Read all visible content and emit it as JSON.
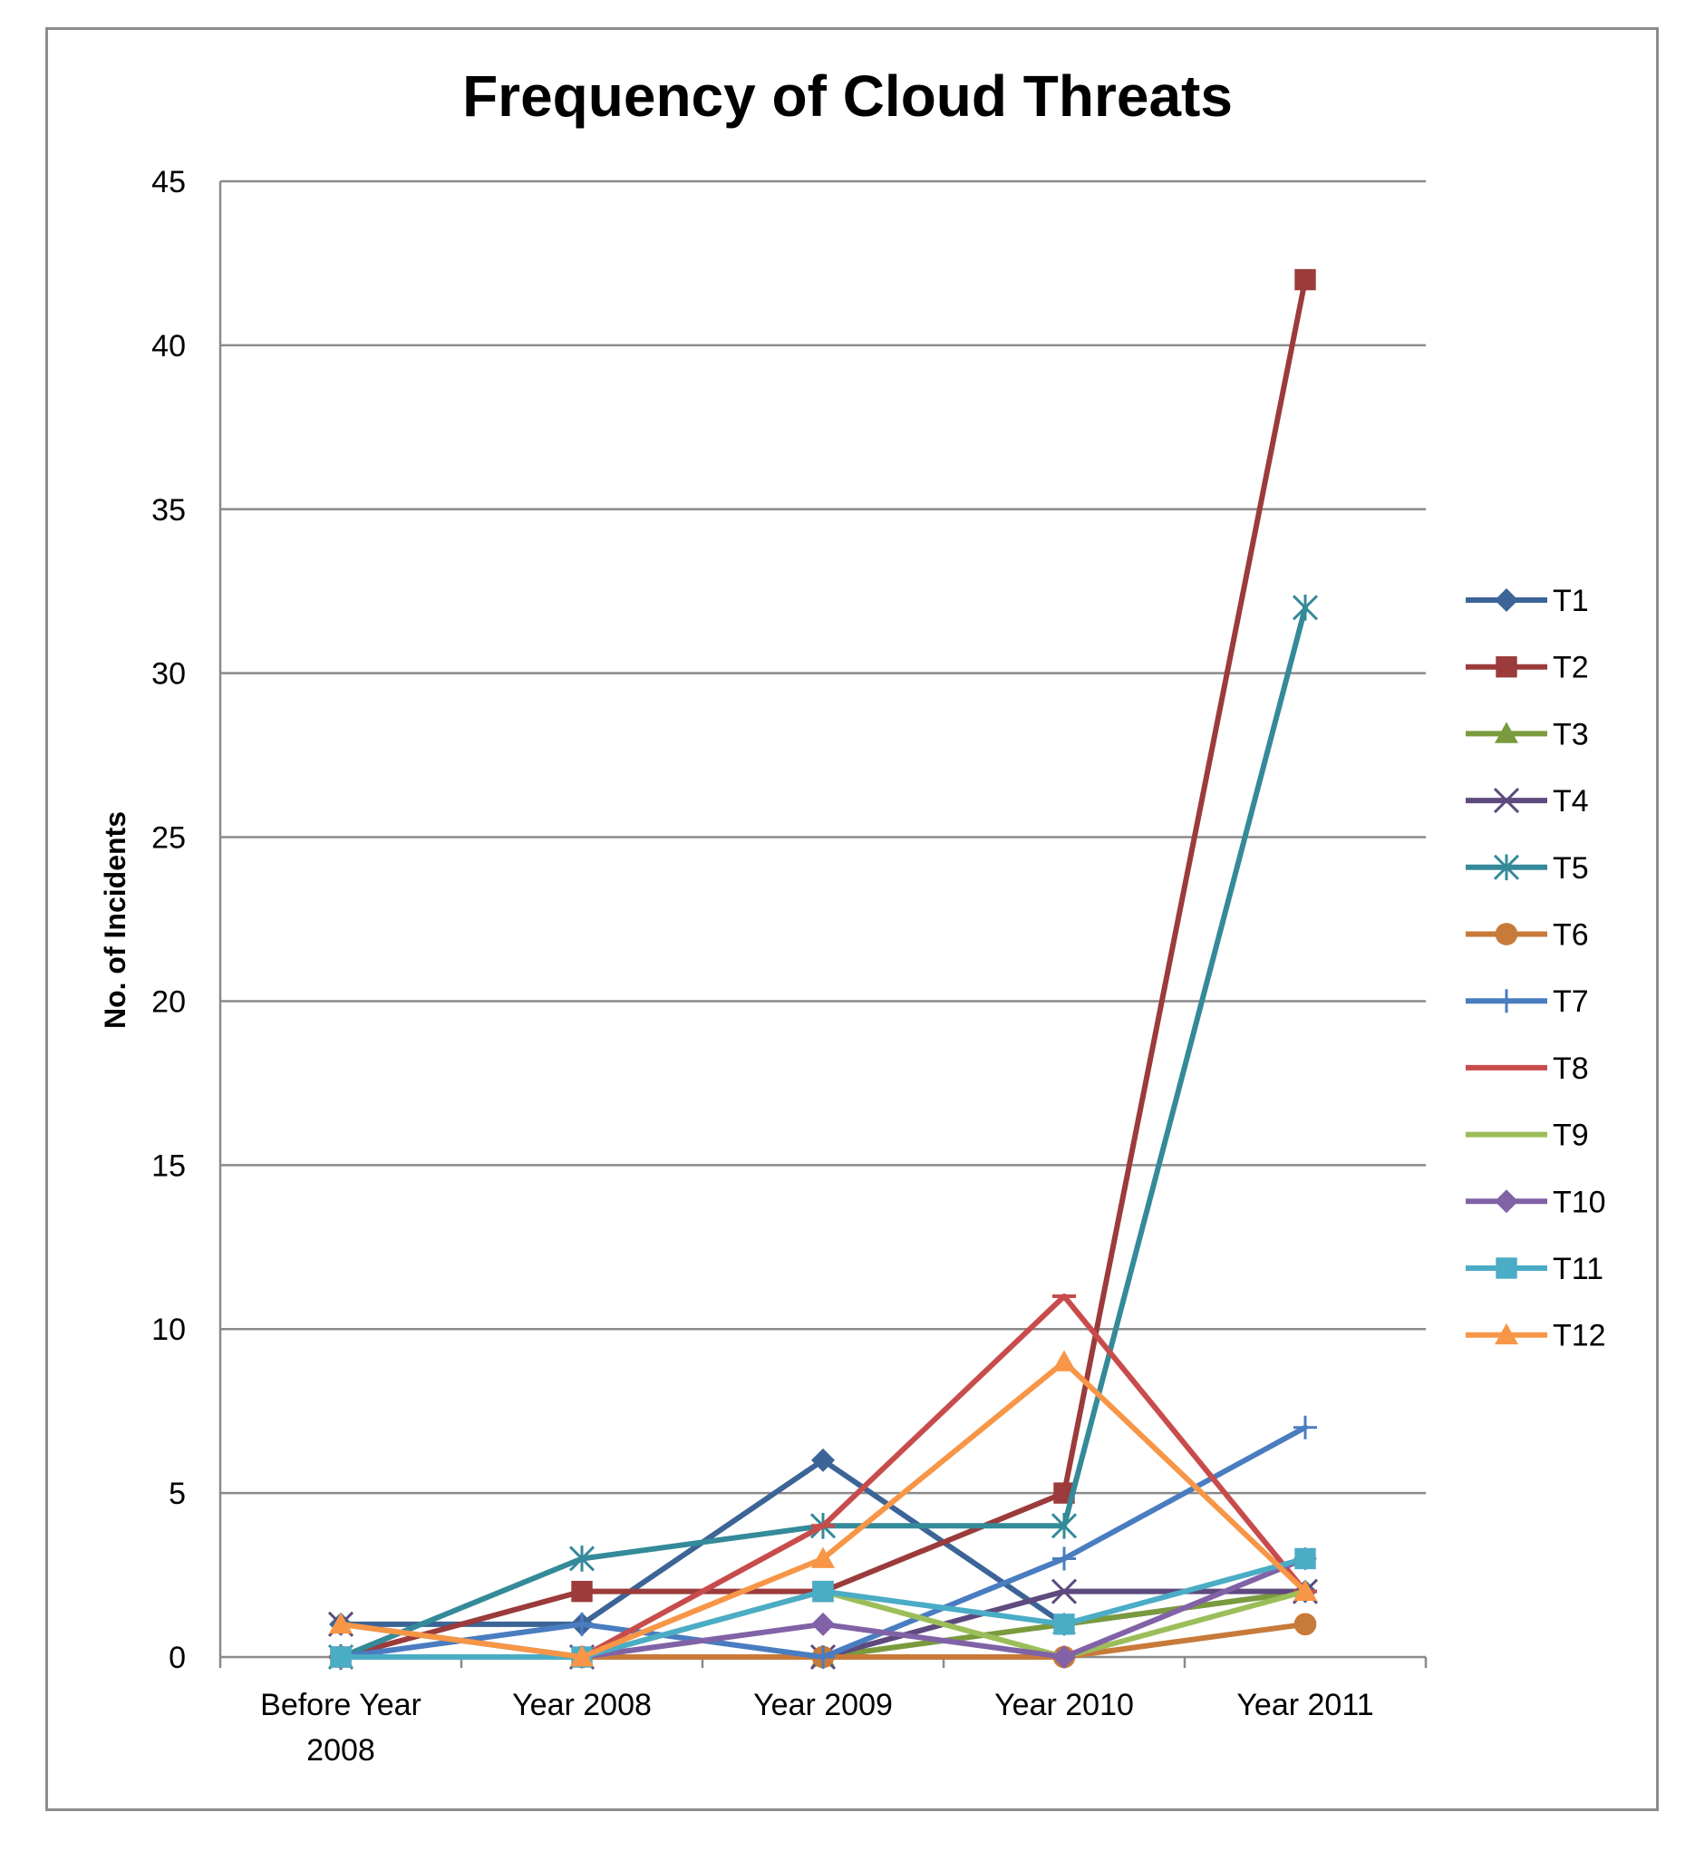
{
  "chart_data": {
    "type": "line",
    "title": "Frequency of Cloud Threats",
    "xlabel": "",
    "ylabel": "No. of Incidents",
    "categories": [
      [
        "Before Year",
        "2008"
      ],
      [
        "Year 2008"
      ],
      [
        "Year 2009"
      ],
      [
        "Year 2010"
      ],
      [
        "Year 2011"
      ]
    ],
    "ylim": [
      0,
      45
    ],
    "yticks": [
      0,
      5,
      10,
      15,
      20,
      25,
      30,
      35,
      40,
      45
    ],
    "grid": true,
    "legend_position": "right",
    "series": [
      {
        "name": "T1",
        "color": "#3c6496",
        "marker": "diamond",
        "values": [
          1,
          1,
          6,
          1,
          2
        ]
      },
      {
        "name": "T2",
        "color": "#9b3b3b",
        "marker": "square",
        "values": [
          0,
          2,
          2,
          5,
          42
        ]
      },
      {
        "name": "T3",
        "color": "#7a9a3e",
        "marker": "triangle",
        "values": [
          0,
          0,
          0,
          1,
          2
        ]
      },
      {
        "name": "T4",
        "color": "#5e4a7e",
        "marker": "x",
        "values": [
          1,
          0,
          0,
          2,
          2
        ]
      },
      {
        "name": "T5",
        "color": "#348a99",
        "marker": "star",
        "values": [
          0,
          3,
          4,
          4,
          32
        ]
      },
      {
        "name": "T6",
        "color": "#c87a3a",
        "marker": "circle",
        "values": [
          0,
          0,
          0,
          0,
          1
        ]
      },
      {
        "name": "T7",
        "color": "#4a7cc0",
        "marker": "plus",
        "values": [
          0,
          1,
          0,
          3,
          7
        ]
      },
      {
        "name": "T8",
        "color": "#c84c4c",
        "marker": "dash",
        "values": [
          0,
          0,
          4,
          11,
          2
        ]
      },
      {
        "name": "T9",
        "color": "#9cbe5a",
        "marker": "none",
        "values": [
          0,
          0,
          2,
          0,
          2
        ]
      },
      {
        "name": "T10",
        "color": "#8162a6",
        "marker": "diamond",
        "values": [
          0,
          0,
          1,
          0,
          3
        ]
      },
      {
        "name": "T11",
        "color": "#4bacc6",
        "marker": "square",
        "values": [
          0,
          0,
          2,
          1,
          3
        ]
      },
      {
        "name": "T12",
        "color": "#f79646",
        "marker": "triangle",
        "values": [
          1,
          0,
          3,
          9,
          2
        ]
      }
    ]
  }
}
